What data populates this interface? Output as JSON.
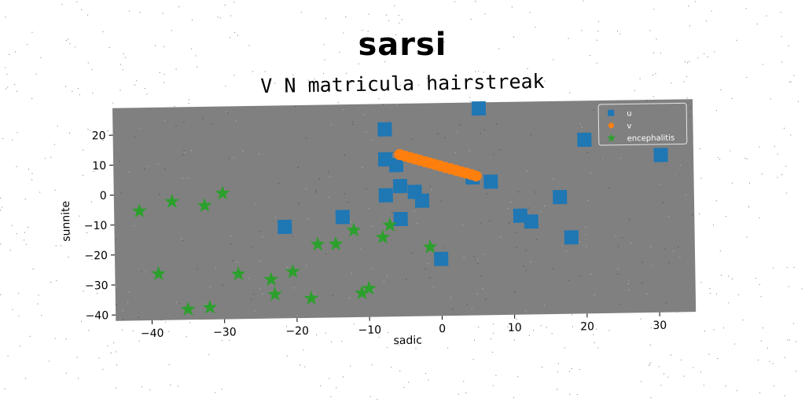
{
  "colors": {
    "u": "#1f77b4",
    "v": "#ff7f0e",
    "encephalitis": "#2ca02c",
    "plot_bg": "#808080",
    "page_bg": "#ffffff"
  },
  "chart_data": {
    "type": "scatter",
    "suptitle": "sarsi",
    "title": "V N matricula hairstreak",
    "xlabel": "sadic",
    "ylabel": "sunnite",
    "xlim": [
      -45,
      35
    ],
    "ylim": [
      -42,
      29
    ],
    "xticks": [
      -40,
      -30,
      -20,
      -10,
      0,
      10,
      20,
      30
    ],
    "yticks": [
      20,
      10,
      0,
      -10,
      -20,
      -30,
      -40
    ],
    "grid": false,
    "legend_position": "top-right",
    "series": [
      {
        "name": "u",
        "marker": "square",
        "points": [
          [
            -7.5,
            20.5
          ],
          [
            5.5,
            27
          ],
          [
            20,
            16
          ],
          [
            30.5,
            10.5
          ],
          [
            -7.5,
            10.5
          ],
          [
            -6,
            8.5
          ],
          [
            4.5,
            4
          ],
          [
            7,
            2.5
          ],
          [
            -5.5,
            1.5
          ],
          [
            -7.5,
            -1.5
          ],
          [
            -3.5,
            -0.5
          ],
          [
            -2.5,
            -3.5
          ],
          [
            -13.5,
            -8.5
          ],
          [
            -5.5,
            -9.5
          ],
          [
            -21.5,
            -11.5
          ],
          [
            11,
            -9
          ],
          [
            12.5,
            -11
          ],
          [
            16.5,
            -3
          ],
          [
            18,
            -16.5
          ],
          [
            0,
            -23
          ]
        ]
      },
      {
        "name": "v",
        "marker": "circle",
        "points": [
          [
            -5.5,
            12
          ],
          [
            -4.8,
            11.5
          ],
          [
            -4.1,
            11
          ],
          [
            -3.4,
            10.5
          ],
          [
            -2.7,
            10
          ],
          [
            -2.0,
            9.5
          ],
          [
            -1.3,
            9
          ],
          [
            -0.6,
            8.5
          ],
          [
            0.1,
            8
          ],
          [
            0.8,
            7.5
          ],
          [
            1.5,
            7
          ],
          [
            2.2,
            6.5
          ],
          [
            2.9,
            6
          ],
          [
            3.6,
            5.5
          ],
          [
            4.3,
            5
          ],
          [
            5.0,
            4.5
          ]
        ]
      },
      {
        "name": "encephalitis",
        "marker": "star",
        "points": [
          [
            -41.5,
            -5.5
          ],
          [
            -37,
            -2.5
          ],
          [
            -32.5,
            -4
          ],
          [
            -30,
            0
          ],
          [
            -39,
            -26.5
          ],
          [
            -28,
            -27
          ],
          [
            -23.5,
            -29
          ],
          [
            -20.5,
            -26.5
          ],
          [
            -23,
            -34
          ],
          [
            -35,
            -38.5
          ],
          [
            -32,
            -38
          ],
          [
            -18,
            -35.5
          ],
          [
            -17,
            -17.5
          ],
          [
            -14.5,
            -17.5
          ],
          [
            -12,
            -13
          ],
          [
            -8,
            -15.5
          ],
          [
            -7,
            -11.5
          ],
          [
            -1.5,
            -19
          ],
          [
            -11,
            -34
          ],
          [
            -10,
            -32.5
          ]
        ]
      }
    ]
  }
}
